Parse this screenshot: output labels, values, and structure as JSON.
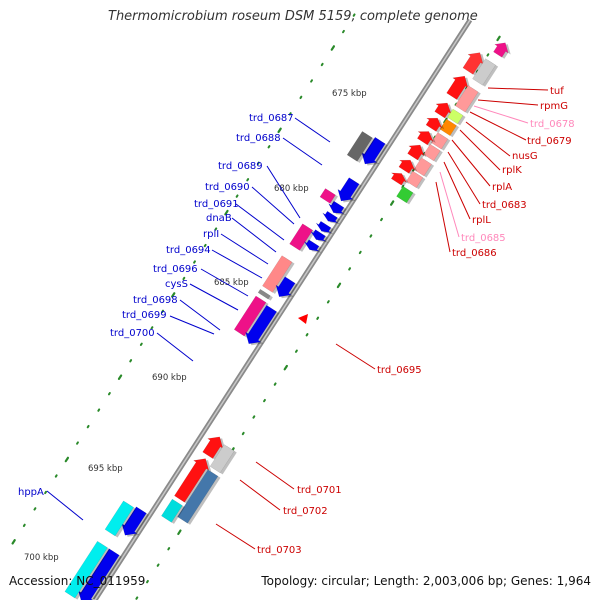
{
  "title": "Thermomicrobium roseum DSM 5159, complete genome",
  "footer": {
    "accession": "Accession: NC_011959",
    "topology": "Topology: circular; Length: 2,003,006 bp; Genes: 1,964"
  },
  "kbp_labels": [
    "675 kbp",
    "680 kbp",
    "685 kbp",
    "690 kbp",
    "695 kbp",
    "700 kbp"
  ],
  "colors": {
    "forward_label": "#0000cc",
    "reverse_label": "#cc0000",
    "pink_label": "#ff88bb",
    "backbone": "#888888",
    "tick": "#2a8a2a"
  },
  "left_labels": [
    "trd_0687",
    "trd_0688",
    "trd_0689",
    "trd_0690",
    "trd_0691",
    "dnaB",
    "rplI",
    "trd_0694",
    "trd_0696",
    "cysS",
    "trd_0698",
    "trd_0699",
    "trd_0700",
    "hppA"
  ],
  "right_labels": [
    "tuf",
    "rpmG",
    "trd_0678",
    "trd_0679",
    "nusG",
    "rplK",
    "rplA",
    "trd_0683",
    "rplL",
    "trd_0685",
    "trd_0686",
    "trd_0695",
    "trd_0701",
    "trd_0702",
    "trd_0703"
  ]
}
